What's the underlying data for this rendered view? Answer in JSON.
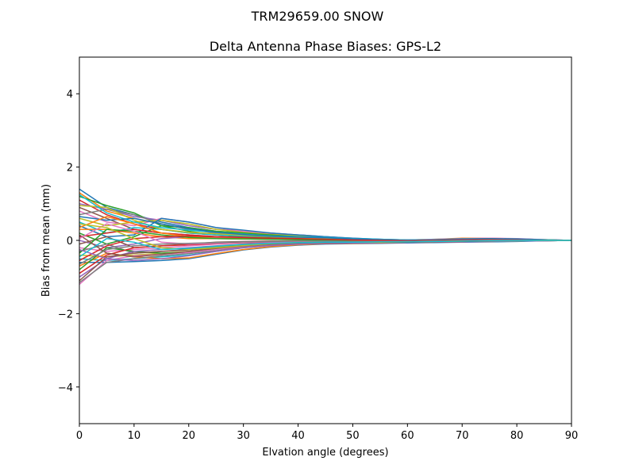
{
  "chart_data": {
    "type": "line",
    "suptitle": "TRM29659.00      SNOW",
    "title": "Delta Antenna Phase Biases: GPS-L2",
    "xlabel": "Elvation angle (degrees)",
    "ylabel": "Bias from mean (mm)",
    "xlim": [
      0,
      90
    ],
    "ylim": [
      -5,
      5
    ],
    "xticks": [
      0,
      10,
      20,
      30,
      40,
      50,
      60,
      70,
      80,
      90
    ],
    "yticks": [
      4,
      2,
      0,
      -2,
      -4
    ],
    "ytick_labels": [
      "4",
      "2",
      "0",
      "−2",
      "−4"
    ],
    "grid": false,
    "x": [
      0,
      5,
      10,
      15,
      20,
      25,
      30,
      35,
      40,
      45,
      50,
      55,
      60,
      65,
      70,
      75,
      80,
      85,
      90
    ],
    "series_colors": [
      "#1f77b4",
      "#ff7f0e",
      "#2ca02c",
      "#d62728",
      "#9467bd",
      "#8c564b",
      "#e377c2",
      "#7f7f7f",
      "#bcbd22",
      "#17becf"
    ],
    "series": [
      {
        "values": [
          1.4,
          0.9,
          0.7,
          0.5,
          0.35,
          0.25,
          0.2,
          0.15,
          0.12,
          0.1,
          0.05,
          0.02,
          0.0,
          0.02,
          0.05,
          0.05,
          0.03,
          0.01,
          0
        ]
      },
      {
        "values": [
          1.3,
          0.8,
          0.6,
          0.45,
          0.3,
          0.2,
          0.18,
          0.12,
          0.1,
          0.08,
          0.04,
          0.02,
          0.01,
          0.03,
          0.06,
          0.06,
          0.04,
          0.02,
          0
        ]
      },
      {
        "values": [
          1.2,
          0.95,
          0.75,
          0.4,
          0.25,
          0.15,
          0.1,
          0.08,
          0.06,
          0.05,
          0.03,
          0.0,
          -0.02,
          0.0,
          0.02,
          0.03,
          0.02,
          0.0,
          0
        ]
      },
      {
        "values": [
          1.1,
          0.7,
          0.45,
          0.3,
          0.2,
          0.15,
          0.12,
          0.1,
          0.08,
          0.06,
          0.03,
          0.01,
          0.0,
          0.01,
          0.03,
          0.04,
          0.03,
          0.01,
          0
        ]
      },
      {
        "values": [
          1.0,
          0.85,
          0.65,
          0.55,
          0.4,
          0.3,
          0.25,
          0.2,
          0.15,
          0.1,
          0.06,
          0.03,
          0.01,
          0.02,
          0.04,
          0.05,
          0.04,
          0.02,
          0
        ]
      },
      {
        "values": [
          0.9,
          0.6,
          0.3,
          0.2,
          0.15,
          0.1,
          0.08,
          0.05,
          0.04,
          0.03,
          0.02,
          0.0,
          -0.01,
          0.0,
          0.01,
          0.02,
          0.01,
          0.0,
          0
        ]
      },
      {
        "values": [
          0.8,
          0.5,
          0.4,
          0.6,
          0.5,
          0.35,
          0.25,
          0.18,
          0.12,
          0.08,
          0.05,
          0.02,
          0.01,
          0.03,
          0.05,
          0.06,
          0.05,
          0.02,
          0
        ]
      },
      {
        "values": [
          0.7,
          0.85,
          0.7,
          0.45,
          0.3,
          0.2,
          0.15,
          0.1,
          0.08,
          0.06,
          0.04,
          0.02,
          0.0,
          0.01,
          0.03,
          0.04,
          0.03,
          0.01,
          0
        ]
      },
      {
        "values": [
          0.6,
          0.4,
          0.5,
          0.55,
          0.45,
          0.3,
          0.22,
          0.16,
          0.12,
          0.08,
          0.05,
          0.02,
          0.0,
          0.02,
          0.04,
          0.04,
          0.03,
          0.01,
          0
        ]
      },
      {
        "values": [
          0.5,
          0.2,
          0.35,
          0.3,
          0.2,
          0.15,
          0.12,
          0.1,
          0.07,
          0.05,
          0.03,
          0.01,
          0.0,
          0.01,
          0.02,
          0.03,
          0.02,
          0.01,
          0
        ]
      },
      {
        "values": [
          0.4,
          0.1,
          0.15,
          0.6,
          0.5,
          0.35,
          0.28,
          0.2,
          0.15,
          0.1,
          0.06,
          0.03,
          0.01,
          0.02,
          0.04,
          0.05,
          0.04,
          0.02,
          0
        ]
      },
      {
        "values": [
          0.3,
          0.3,
          0.2,
          0.1,
          0.05,
          0.05,
          0.04,
          0.03,
          0.02,
          0.0,
          -0.02,
          -0.03,
          -0.03,
          -0.02,
          0.0,
          0.01,
          0.01,
          0.0,
          0
        ]
      },
      {
        "values": [
          0.2,
          -0.1,
          0.1,
          0.4,
          0.35,
          0.25,
          0.2,
          0.15,
          0.1,
          0.06,
          0.03,
          0.01,
          0.0,
          0.01,
          0.03,
          0.04,
          0.03,
          0.01,
          0
        ]
      },
      {
        "values": [
          0.1,
          0.2,
          0.3,
          0.2,
          0.15,
          0.1,
          0.08,
          0.05,
          0.04,
          0.02,
          0.0,
          -0.01,
          -0.02,
          -0.01,
          0.01,
          0.02,
          0.01,
          0.0,
          0
        ]
      },
      {
        "values": [
          0.0,
          -0.2,
          -0.1,
          0.05,
          0.1,
          0.08,
          0.06,
          0.04,
          0.03,
          0.02,
          0.0,
          -0.01,
          -0.02,
          -0.01,
          0.0,
          0.01,
          0.01,
          0.0,
          0
        ]
      },
      {
        "values": [
          -0.1,
          0.1,
          -0.2,
          -0.15,
          -0.1,
          -0.05,
          -0.03,
          -0.02,
          -0.02,
          -0.02,
          -0.03,
          -0.03,
          -0.03,
          -0.02,
          0.0,
          0.0,
          0.0,
          0.0,
          0
        ]
      },
      {
        "values": [
          -0.2,
          -0.3,
          -0.25,
          -0.2,
          -0.15,
          -0.1,
          -0.06,
          -0.04,
          -0.03,
          -0.03,
          -0.04,
          -0.04,
          -0.04,
          -0.03,
          -0.01,
          0.0,
          0.0,
          0.0,
          0
        ]
      },
      {
        "values": [
          -0.3,
          -0.1,
          -0.35,
          -0.3,
          -0.25,
          -0.18,
          -0.12,
          -0.08,
          -0.06,
          -0.05,
          -0.05,
          -0.05,
          -0.05,
          -0.04,
          -0.02,
          -0.01,
          -0.01,
          0.0,
          0
        ]
      },
      {
        "values": [
          -0.4,
          -0.45,
          -0.4,
          -0.35,
          -0.3,
          -0.22,
          -0.15,
          -0.1,
          -0.08,
          -0.06,
          -0.06,
          -0.05,
          -0.05,
          -0.04,
          -0.03,
          -0.02,
          -0.01,
          0.0,
          0
        ]
      },
      {
        "values": [
          -0.5,
          -0.55,
          -0.5,
          -0.45,
          -0.4,
          -0.3,
          -0.2,
          -0.14,
          -0.1,
          -0.08,
          -0.07,
          -0.06,
          -0.06,
          -0.05,
          -0.04,
          -0.03,
          -0.02,
          -0.01,
          0
        ]
      },
      {
        "values": [
          -0.6,
          -0.6,
          -0.58,
          -0.55,
          -0.5,
          -0.38,
          -0.26,
          -0.18,
          -0.13,
          -0.1,
          -0.09,
          -0.08,
          -0.07,
          -0.06,
          -0.05,
          -0.04,
          -0.03,
          -0.01,
          0
        ]
      },
      {
        "values": [
          -0.7,
          -0.35,
          -0.45,
          -0.5,
          -0.48,
          -0.36,
          -0.25,
          -0.17,
          -0.12,
          -0.09,
          -0.08,
          -0.07,
          -0.06,
          -0.05,
          -0.04,
          -0.03,
          -0.02,
          -0.01,
          0
        ]
      },
      {
        "values": [
          -0.8,
          -0.2,
          -0.3,
          -0.35,
          -0.32,
          -0.24,
          -0.17,
          -0.12,
          -0.09,
          -0.07,
          -0.06,
          -0.05,
          -0.05,
          -0.04,
          -0.03,
          -0.02,
          -0.01,
          0.0,
          0
        ]
      },
      {
        "values": [
          -0.9,
          -0.4,
          -0.2,
          -0.15,
          -0.12,
          -0.09,
          -0.06,
          -0.05,
          -0.04,
          -0.04,
          -0.04,
          -0.04,
          -0.04,
          -0.03,
          -0.02,
          -0.01,
          -0.01,
          0.0,
          0
        ]
      },
      {
        "values": [
          -1.0,
          -0.5,
          -0.3,
          -0.25,
          -0.2,
          -0.15,
          -0.1,
          -0.07,
          -0.05,
          -0.05,
          -0.05,
          -0.05,
          -0.05,
          -0.04,
          -0.03,
          -0.02,
          -0.01,
          0.0,
          0
        ]
      },
      {
        "values": [
          -1.1,
          -0.45,
          -0.35,
          -0.3,
          -0.26,
          -0.2,
          -0.14,
          -0.1,
          -0.07,
          -0.06,
          -0.06,
          -0.05,
          -0.05,
          -0.04,
          -0.03,
          -0.02,
          -0.01,
          0.0,
          0
        ]
      },
      {
        "values": [
          -1.2,
          -0.55,
          -0.42,
          -0.38,
          -0.33,
          -0.25,
          -0.17,
          -0.12,
          -0.09,
          -0.07,
          -0.07,
          -0.06,
          -0.06,
          -0.05,
          -0.04,
          -0.03,
          -0.02,
          -0.01,
          0
        ]
      },
      {
        "values": [
          -1.15,
          -0.6,
          -0.5,
          -0.42,
          -0.36,
          -0.28,
          -0.19,
          -0.13,
          -0.1,
          -0.08,
          -0.07,
          -0.06,
          -0.06,
          -0.05,
          -0.04,
          -0.03,
          -0.02,
          -0.01,
          0
        ]
      },
      {
        "values": [
          0.95,
          0.9,
          0.55,
          0.3,
          0.22,
          0.18,
          0.14,
          0.1,
          0.08,
          0.06,
          0.04,
          0.02,
          0.0,
          0.01,
          0.02,
          0.03,
          0.02,
          0.01,
          0
        ]
      },
      {
        "values": [
          1.25,
          0.75,
          0.5,
          0.35,
          0.28,
          0.22,
          0.17,
          0.12,
          0.1,
          0.08,
          0.05,
          0.03,
          0.01,
          0.02,
          0.03,
          0.04,
          0.03,
          0.01,
          0
        ]
      },
      {
        "values": [
          0.65,
          0.55,
          0.6,
          0.45,
          0.32,
          0.22,
          0.16,
          0.11,
          0.09,
          0.07,
          0.04,
          0.02,
          0.0,
          0.01,
          0.03,
          0.04,
          0.03,
          0.01,
          0
        ]
      },
      {
        "values": [
          0.35,
          0.65,
          0.45,
          0.2,
          0.1,
          0.06,
          0.05,
          0.04,
          0.03,
          0.02,
          0.0,
          -0.01,
          -0.02,
          -0.01,
          0.0,
          0.01,
          0.0,
          0.0,
          0
        ]
      },
      {
        "values": [
          -0.35,
          0.3,
          0.25,
          0.15,
          0.08,
          0.05,
          0.04,
          0.03,
          0.02,
          0.01,
          0.0,
          -0.01,
          -0.02,
          -0.01,
          0.0,
          0.01,
          0.0,
          0.0,
          0
        ]
      },
      {
        "values": [
          -0.55,
          -0.15,
          0.05,
          0.1,
          0.12,
          0.1,
          0.08,
          0.06,
          0.05,
          0.03,
          0.01,
          0.0,
          -0.01,
          0.0,
          0.01,
          0.02,
          0.01,
          0.0,
          0
        ]
      },
      {
        "values": [
          -0.25,
          -0.5,
          -0.55,
          -0.5,
          -0.42,
          -0.3,
          -0.2,
          -0.14,
          -0.1,
          -0.08,
          -0.07,
          -0.06,
          -0.06,
          -0.05,
          -0.04,
          -0.03,
          -0.02,
          -0.01,
          0
        ]
      },
      {
        "values": [
          0.15,
          -0.35,
          -0.45,
          -0.38,
          -0.3,
          -0.22,
          -0.15,
          -0.1,
          -0.07,
          -0.06,
          -0.05,
          -0.05,
          -0.05,
          -0.04,
          -0.03,
          -0.02,
          -0.01,
          0.0,
          0
        ]
      },
      {
        "values": [
          0.05,
          0.45,
          0.25,
          -0.05,
          -0.1,
          -0.08,
          -0.05,
          -0.04,
          -0.03,
          -0.03,
          -0.03,
          -0.03,
          -0.03,
          -0.02,
          -0.01,
          0.0,
          0.0,
          0.0,
          0
        ]
      },
      {
        "values": [
          -0.65,
          -0.25,
          -0.15,
          -0.1,
          -0.08,
          -0.06,
          -0.04,
          -0.03,
          -0.02,
          -0.02,
          -0.03,
          -0.03,
          -0.03,
          -0.02,
          -0.01,
          0.0,
          0.0,
          0.0,
          0
        ]
      },
      {
        "values": [
          0.45,
          0.35,
          0.05,
          -0.2,
          -0.25,
          -0.2,
          -0.14,
          -0.09,
          -0.06,
          -0.05,
          -0.05,
          -0.05,
          -0.04,
          -0.03,
          -0.02,
          -0.01,
          -0.01,
          0.0,
          0
        ]
      },
      {
        "values": [
          -0.45,
          0.05,
          -0.05,
          -0.25,
          -0.22,
          -0.16,
          -0.11,
          -0.08,
          -0.06,
          -0.05,
          -0.05,
          -0.04,
          -0.04,
          -0.03,
          -0.02,
          -0.01,
          -0.01,
          0.0,
          0
        ]
      }
    ]
  }
}
